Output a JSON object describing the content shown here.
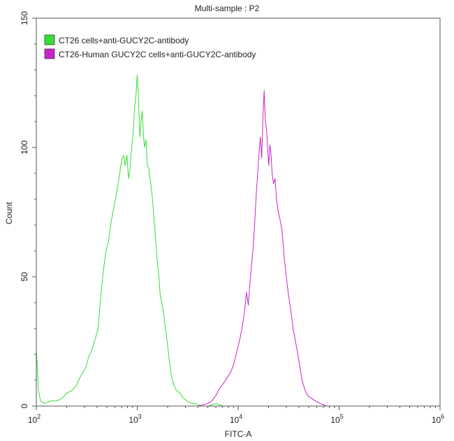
{
  "chart_data": {
    "type": "line",
    "title": "Multi-sample : P2",
    "xlabel": "FITC-A",
    "ylabel": "Count",
    "x_scale": "log",
    "xlim": [
      100,
      1000000
    ],
    "ylim": [
      0,
      150
    ],
    "x_ticks": [
      {
        "value": 100,
        "base": "10",
        "exp": "2"
      },
      {
        "value": 1000,
        "base": "10",
        "exp": "3"
      },
      {
        "value": 10000,
        "base": "10",
        "exp": "4"
      },
      {
        "value": 100000,
        "base": "10",
        "exp": "5"
      },
      {
        "value": 1000000,
        "base": "10",
        "exp": "6"
      }
    ],
    "y_ticks": [
      {
        "value": 0,
        "label": "0"
      },
      {
        "value": 50,
        "label": "50"
      },
      {
        "value": 100,
        "label": "100"
      },
      {
        "value": 150,
        "label": "150"
      }
    ],
    "grid": false,
    "legend_position": "top-left",
    "series": [
      {
        "name": "CT26 cells+anti-GUCY2C-antibody",
        "color": "#33dd33",
        "points": [
          [
            100,
            22
          ],
          [
            105,
            6
          ],
          [
            110,
            2
          ],
          [
            120,
            1
          ],
          [
            140,
            2
          ],
          [
            160,
            2
          ],
          [
            180,
            3
          ],
          [
            200,
            5
          ],
          [
            225,
            6
          ],
          [
            250,
            8
          ],
          [
            270,
            11
          ],
          [
            290,
            13
          ],
          [
            310,
            15
          ],
          [
            330,
            19
          ],
          [
            350,
            21
          ],
          [
            370,
            24
          ],
          [
            390,
            27
          ],
          [
            410,
            30
          ],
          [
            430,
            40
          ],
          [
            460,
            52
          ],
          [
            490,
            60
          ],
          [
            520,
            64
          ],
          [
            550,
            71
          ],
          [
            580,
            76
          ],
          [
            610,
            80
          ],
          [
            640,
            85
          ],
          [
            670,
            90
          ],
          [
            700,
            95
          ],
          [
            730,
            97
          ],
          [
            760,
            93
          ],
          [
            790,
            97
          ],
          [
            820,
            88
          ],
          [
            850,
            92
          ],
          [
            880,
            100
          ],
          [
            910,
            105
          ],
          [
            940,
            115
          ],
          [
            970,
            120
          ],
          [
            1000,
            128
          ],
          [
            1030,
            118
          ],
          [
            1060,
            104
          ],
          [
            1090,
            110
          ],
          [
            1120,
            114
          ],
          [
            1150,
            105
          ],
          [
            1180,
            100
          ],
          [
            1220,
            103
          ],
          [
            1260,
            93
          ],
          [
            1300,
            92
          ],
          [
            1350,
            87
          ],
          [
            1400,
            82
          ],
          [
            1450,
            75
          ],
          [
            1500,
            68
          ],
          [
            1560,
            58
          ],
          [
            1620,
            52
          ],
          [
            1690,
            43
          ],
          [
            1750,
            40
          ],
          [
            1820,
            36
          ],
          [
            1900,
            30
          ],
          [
            1980,
            25
          ],
          [
            2070,
            18
          ],
          [
            2170,
            12
          ],
          [
            2300,
            8
          ],
          [
            2450,
            6
          ],
          [
            2650,
            5
          ],
          [
            2850,
            3
          ],
          [
            3100,
            2
          ],
          [
            3400,
            1
          ],
          [
            3800,
            1
          ],
          [
            4300,
            0
          ],
          [
            5000,
            0
          ],
          [
            6000,
            1
          ],
          [
            7000,
            0
          ],
          [
            8000,
            0
          ]
        ]
      },
      {
        "name": "CT26-Human GUCY2C cells+anti-GUCY2C-antibody",
        "color": "#cc22cc",
        "points": [
          [
            1400,
            0
          ],
          [
            2000,
            0
          ],
          [
            3000,
            0
          ],
          [
            4000,
            0
          ],
          [
            5000,
            1
          ],
          [
            5500,
            2
          ],
          [
            6000,
            4
          ],
          [
            6600,
            7
          ],
          [
            7200,
            9
          ],
          [
            7800,
            11
          ],
          [
            8400,
            13
          ],
          [
            9000,
            16
          ],
          [
            9700,
            21
          ],
          [
            10400,
            26
          ],
          [
            11000,
            31
          ],
          [
            11600,
            37
          ],
          [
            12100,
            44
          ],
          [
            12600,
            39
          ],
          [
            13100,
            48
          ],
          [
            13600,
            55
          ],
          [
            14100,
            62
          ],
          [
            14600,
            71
          ],
          [
            15100,
            82
          ],
          [
            15600,
            90
          ],
          [
            16100,
            98
          ],
          [
            16600,
            104
          ],
          [
            17100,
            96
          ],
          [
            17600,
            112
          ],
          [
            18100,
            122
          ],
          [
            18600,
            110
          ],
          [
            19100,
            107
          ],
          [
            19600,
            100
          ],
          [
            20100,
            93
          ],
          [
            20600,
            101
          ],
          [
            21100,
            98
          ],
          [
            21700,
            90
          ],
          [
            22400,
            86
          ],
          [
            23200,
            88
          ],
          [
            24000,
            80
          ],
          [
            25000,
            75
          ],
          [
            26000,
            72
          ],
          [
            27200,
            68
          ],
          [
            28500,
            58
          ],
          [
            30000,
            50
          ],
          [
            31500,
            43
          ],
          [
            33000,
            38
          ],
          [
            35000,
            30
          ],
          [
            37000,
            25
          ],
          [
            39000,
            20
          ],
          [
            41000,
            15
          ],
          [
            43000,
            10
          ],
          [
            46000,
            6
          ],
          [
            49000,
            4
          ],
          [
            53000,
            3
          ],
          [
            58000,
            2
          ],
          [
            65000,
            1
          ],
          [
            75000,
            0
          ],
          [
            80000,
            0
          ]
        ]
      }
    ]
  }
}
